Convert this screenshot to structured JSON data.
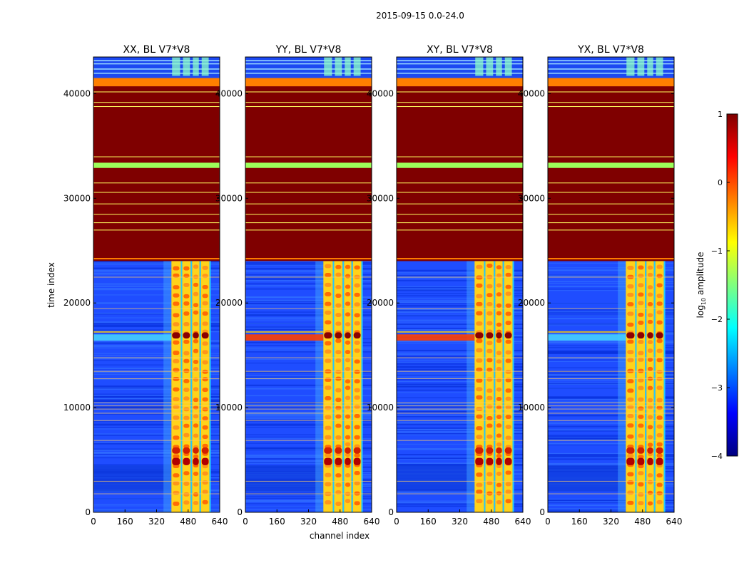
{
  "figure": {
    "suptitle": "2015-09-15 0.0-24.0",
    "xlabel": "channel index",
    "ylabel": "time index"
  },
  "colormap": {
    "name": "jet",
    "stops": [
      "#00007f",
      "#0000ff",
      "#007fff",
      "#00ffff",
      "#7fff7f",
      "#ffff00",
      "#ff7f00",
      "#ff0000",
      "#7f0000"
    ]
  },
  "colorbar": {
    "label": "log10 amplitude",
    "label_main": "log",
    "label_sub": "10",
    "label_tail": " amplitude",
    "range": [
      -4,
      1
    ],
    "ticks": [
      1,
      0,
      -1,
      -2,
      -3,
      -4
    ],
    "tick_labels": [
      "1",
      "0",
      "−1",
      "−2",
      "−3",
      "−4"
    ]
  },
  "chart_data": [
    {
      "type": "heatmap",
      "title": "XX, BL V7*V8",
      "xlabel": "channel index",
      "ylabel": "time index",
      "xlim": [
        0,
        640
      ],
      "ylim": [
        0,
        43500
      ],
      "x_ticks": [
        0,
        160,
        320,
        480,
        640
      ],
      "y_ticks": [
        0,
        10000,
        20000,
        30000,
        40000
      ],
      "variant": 0
    },
    {
      "type": "heatmap",
      "title": "YY, BL V7*V8",
      "xlabel": "channel index",
      "ylabel": "time index",
      "xlim": [
        0,
        640
      ],
      "ylim": [
        0,
        43500
      ],
      "x_ticks": [
        0,
        160,
        320,
        480,
        640
      ],
      "y_ticks": [
        0,
        10000,
        20000,
        30000,
        40000
      ],
      "variant": 1
    },
    {
      "type": "heatmap",
      "title": "XY, BL V7*V8",
      "xlabel": "channel index",
      "ylabel": "time index",
      "xlim": [
        0,
        640
      ],
      "ylim": [
        0,
        43500
      ],
      "x_ticks": [
        0,
        160,
        320,
        480,
        640
      ],
      "y_ticks": [
        0,
        10000,
        20000,
        30000,
        40000
      ],
      "variant": 2
    },
    {
      "type": "heatmap",
      "title": "YX, BL V7*V8",
      "xlabel": "channel index",
      "ylabel": "time index",
      "xlim": [
        0,
        640
      ],
      "ylim": [
        0,
        43500
      ],
      "x_ticks": [
        0,
        160,
        320,
        480,
        640
      ],
      "y_ticks": [
        0,
        10000,
        20000,
        30000,
        40000
      ],
      "variant": 3
    }
  ]
}
